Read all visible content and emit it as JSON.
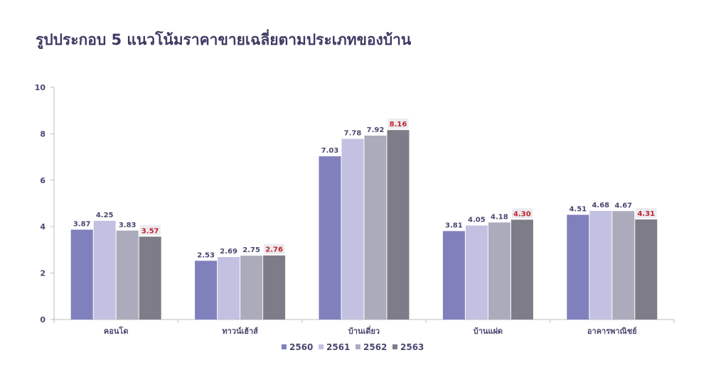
{
  "chart_data": {
    "type": "bar",
    "title": "รูปประกอบ 5 แนวโน้มราคาขายเฉลี่ยตามประเภทของบ้าน",
    "xlabel": "",
    "ylabel": "",
    "ylim": [
      0,
      10
    ],
    "yticks": [
      "0",
      "2",
      "4",
      "6",
      "8",
      "10"
    ],
    "grid": false,
    "legend_position": "bottom",
    "categories": [
      "คอนโด",
      "ทาวน์เฮ้าส์",
      "บ้านเดี่ยว",
      "บ้านแฝด",
      "อาคารพาณิชย์"
    ],
    "series": [
      {
        "name": "2560",
        "values": [
          3.87,
          2.53,
          7.03,
          3.81,
          4.51
        ],
        "labels": [
          "3.87",
          "2.53",
          "7.03",
          "3.81",
          "4.51"
        ],
        "color": "#8080bd"
      },
      {
        "name": "2561",
        "values": [
          4.25,
          2.69,
          7.78,
          4.05,
          4.68
        ],
        "labels": [
          "4.25",
          "2.69",
          "7.78",
          "4.05",
          "4.68"
        ],
        "color": "#c3c1e2"
      },
      {
        "name": "2562",
        "values": [
          3.83,
          2.75,
          7.92,
          4.18,
          4.67
        ],
        "labels": [
          "3.83",
          "2.75",
          "7.92",
          "4.18",
          "4.67"
        ],
        "color": "#acabbb"
      },
      {
        "name": "2563",
        "values": [
          3.57,
          2.76,
          8.16,
          4.3,
          4.31
        ],
        "labels": [
          "3.57",
          "2.76",
          "8.16",
          "4.30",
          "4.31"
        ],
        "color": "#7e7c89",
        "highlight_color": "#c0252b"
      }
    ]
  }
}
